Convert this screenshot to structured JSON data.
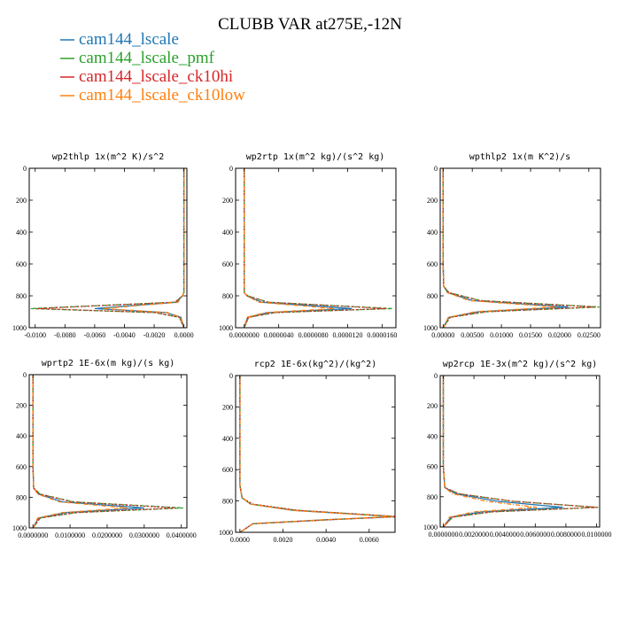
{
  "figure": {
    "title": "CLUBB VAR at275E,-12N"
  },
  "legend": [
    {
      "name": "cam144_lscale",
      "color": "#1f77b4"
    },
    {
      "name": "cam144_lscale_pmf",
      "color": "#2ca02c"
    },
    {
      "name": "cam144_lscale_ck10hi",
      "color": "#d62728"
    },
    {
      "name": "cam144_lscale_ck10low",
      "color": "#ff7f0e"
    }
  ],
  "chart_data": [
    {
      "type": "line",
      "title": "wp2thlp  1x(m^2 K)/s^2",
      "xlim": [
        -0.0104,
        0.0002
      ],
      "ylim": [
        0,
        1000
      ],
      "x_ticks": [
        "-0.0100",
        "-0.0080",
        "-0.0060",
        "-0.0040",
        "-0.0020",
        "0.0000"
      ],
      "x_tick_values": [
        -0.01,
        -0.008,
        -0.006,
        -0.004,
        -0.002,
        0.0
      ],
      "y_ticks": [
        "0",
        "200",
        "400",
        "600",
        "800",
        "1000"
      ],
      "y_tick_values": [
        0,
        200,
        400,
        600,
        800,
        1000
      ],
      "series": [
        {
          "name": "cam144_lscale",
          "x": [
            0,
            0,
            0,
            -0.0001,
            -0.0005,
            -0.006,
            -0.0012,
            -0.0002,
            0
          ],
          "y": [
            0,
            600,
            780,
            800,
            840,
            880,
            905,
            935,
            1000
          ]
        },
        {
          "name": "cam144_lscale_pmf",
          "x": [
            0,
            0,
            0,
            -0.0001,
            -0.0006,
            -0.0103,
            -0.002,
            -0.0003,
            0
          ],
          "y": [
            0,
            600,
            780,
            800,
            840,
            880,
            905,
            935,
            1000
          ]
        },
        {
          "name": "cam144_lscale_ck10hi",
          "x": [
            0,
            0,
            0,
            -0.0001,
            -0.0006,
            -0.0099,
            -0.0019,
            -0.0003,
            0
          ],
          "y": [
            0,
            600,
            780,
            800,
            840,
            880,
            905,
            935,
            1000
          ]
        },
        {
          "name": "cam144_lscale_ck10low",
          "x": [
            0,
            0,
            0,
            -0.0001,
            -0.0004,
            -0.0055,
            -0.0011,
            -0.0002,
            0
          ],
          "y": [
            0,
            600,
            780,
            800,
            840,
            880,
            905,
            935,
            1000
          ]
        }
      ]
    },
    {
      "type": "line",
      "title": "wp2rtp  1x(m^2 kg)/(s^2 kg)",
      "xlim": [
        -1e-06,
        1.76e-05
      ],
      "ylim": [
        0,
        1000
      ],
      "x_ticks": [
        "0.0000000",
        "0.0000040",
        "0.0000080",
        "0.0000120",
        "0.0000160"
      ],
      "x_tick_values": [
        0,
        4e-06,
        8e-06,
        1.2e-05,
        1.6e-05
      ],
      "y_ticks": [
        "0",
        "200",
        "400",
        "600",
        "800",
        "1000"
      ],
      "y_tick_values": [
        0,
        200,
        400,
        600,
        800,
        1000
      ],
      "series": [
        {
          "name": "cam144_lscale",
          "x": [
            0,
            0,
            0,
            3e-07,
            2e-06,
            1.25e-05,
            2.8e-06,
            4e-07,
            0
          ],
          "y": [
            0,
            600,
            780,
            800,
            840,
            880,
            905,
            935,
            1000
          ]
        },
        {
          "name": "cam144_lscale_pmf",
          "x": [
            0,
            0,
            0,
            4e-07,
            2.8e-06,
            1.72e-05,
            3.6e-06,
            5e-07,
            0
          ],
          "y": [
            0,
            600,
            780,
            800,
            840,
            880,
            905,
            935,
            1000
          ]
        },
        {
          "name": "cam144_lscale_ck10hi",
          "x": [
            0,
            0,
            0,
            4e-07,
            2.7e-06,
            1.65e-05,
            3.5e-06,
            5e-07,
            0
          ],
          "y": [
            0,
            600,
            780,
            800,
            840,
            880,
            905,
            935,
            1000
          ]
        },
        {
          "name": "cam144_lscale_ck10low",
          "x": [
            0,
            0,
            0,
            3e-07,
            1.7e-06,
            1.05e-05,
            2.4e-06,
            3e-07,
            0
          ],
          "y": [
            0,
            600,
            780,
            800,
            840,
            880,
            905,
            935,
            1000
          ]
        }
      ]
    },
    {
      "type": "line",
      "title": "wpthlp2  1x(m K^2)/s",
      "xlim": [
        -0.0005,
        0.027
      ],
      "ylim": [
        0,
        1000
      ],
      "x_ticks": [
        "0.00000",
        "0.00500",
        "0.01000",
        "0.01500",
        "0.02000",
        "0.02500"
      ],
      "x_tick_values": [
        0,
        0.005,
        0.01,
        0.015,
        0.02,
        0.025
      ],
      "y_ticks": [
        "0",
        "200",
        "400",
        "600",
        "800",
        "1000"
      ],
      "y_tick_values": [
        0,
        200,
        400,
        600,
        800,
        1000
      ],
      "series": [
        {
          "name": "cam144_lscale",
          "x": [
            0,
            0,
            0.0001,
            0.0008,
            0.005,
            0.0215,
            0.006,
            0.001,
            0
          ],
          "y": [
            0,
            600,
            740,
            780,
            830,
            870,
            900,
            935,
            1000
          ]
        },
        {
          "name": "cam144_lscale_pmf",
          "x": [
            0,
            0,
            0.0001,
            0.001,
            0.0065,
            0.0268,
            0.0075,
            0.0012,
            0
          ],
          "y": [
            0,
            600,
            740,
            780,
            830,
            870,
            900,
            935,
            1000
          ]
        },
        {
          "name": "cam144_lscale_ck10hi",
          "x": [
            0,
            0,
            0.0001,
            0.001,
            0.0062,
            0.026,
            0.0072,
            0.0012,
            0
          ],
          "y": [
            0,
            600,
            740,
            780,
            830,
            870,
            900,
            935,
            1000
          ]
        },
        {
          "name": "cam144_lscale_ck10low",
          "x": [
            0,
            0,
            0.0001,
            0.0007,
            0.0045,
            0.0195,
            0.0055,
            0.0009,
            0
          ],
          "y": [
            0,
            600,
            740,
            780,
            830,
            870,
            900,
            935,
            1000
          ]
        }
      ]
    },
    {
      "type": "line",
      "title": "wprtp2  1E-6x(m kg)/(s kg)",
      "xlim": [
        -1e-06,
        4.15e-05
      ],
      "ylim": [
        0,
        1000
      ],
      "x_ticks": [
        "0.0000000",
        "0.0100000",
        "0.0200000",
        "0.0300000",
        "0.0400000"
      ],
      "x_tick_values": [
        0,
        1e-05,
        2e-05,
        3e-05,
        4e-05
      ],
      "y_ticks": [
        "0",
        "200",
        "400",
        "600",
        "800",
        "1000"
      ],
      "y_tick_values": [
        0,
        200,
        400,
        600,
        800,
        1000
      ],
      "series": [
        {
          "name": "cam144_lscale",
          "x": [
            0,
            0,
            2e-07,
            1.5e-06,
            8e-06,
            3e-05,
            9e-06,
            1.5e-06,
            0
          ],
          "y": [
            0,
            600,
            740,
            780,
            830,
            870,
            900,
            935,
            1000
          ]
        },
        {
          "name": "cam144_lscale_pmf",
          "x": [
            0,
            0,
            2e-07,
            2e-06,
            1.1e-05,
            4.05e-05,
            1.2e-05,
            2e-06,
            0
          ],
          "y": [
            0,
            600,
            740,
            780,
            830,
            870,
            900,
            935,
            1000
          ]
        },
        {
          "name": "cam144_lscale_ck10hi",
          "x": [
            0,
            0,
            2e-07,
            1.9e-06,
            1.05e-05,
            3.85e-05,
            1.15e-05,
            1.9e-06,
            0
          ],
          "y": [
            0,
            600,
            740,
            780,
            830,
            870,
            900,
            935,
            1000
          ]
        },
        {
          "name": "cam144_lscale_ck10low",
          "x": [
            0,
            0,
            2e-07,
            1.3e-06,
            7.2e-06,
            2.55e-05,
            7.9e-06,
            1.3e-06,
            0
          ],
          "y": [
            0,
            600,
            740,
            780,
            830,
            870,
            900,
            935,
            1000
          ]
        }
      ]
    },
    {
      "type": "line",
      "title": "rcp2  1E-6x(kg^2)/(kg^2)",
      "xlim": [
        -0.0002,
        0.0072
      ],
      "ylim": [
        0,
        1000
      ],
      "x_ticks": [
        "0.0000",
        "0.0020",
        "0.0040",
        "0.0060"
      ],
      "x_tick_values": [
        0,
        0.002,
        0.004,
        0.006
      ],
      "y_ticks": [
        "0",
        "200",
        "400",
        "600",
        "800",
        "1000"
      ],
      "y_tick_values": [
        0,
        200,
        400,
        600,
        800,
        1000
      ],
      "series": [
        {
          "name": "cam144_lscale",
          "x": [
            0,
            0,
            0.0001,
            0.0005,
            0.0025,
            0.0072,
            0.004,
            0.0006,
            0
          ],
          "y": [
            0,
            700,
            780,
            820,
            860,
            900,
            920,
            945,
            1000
          ]
        },
        {
          "name": "cam144_lscale_pmf",
          "x": [
            0,
            0,
            0.0001,
            0.0005,
            0.0026,
            0.0073,
            0.0041,
            0.0006,
            0
          ],
          "y": [
            0,
            700,
            780,
            820,
            860,
            900,
            920,
            945,
            1000
          ]
        },
        {
          "name": "cam144_lscale_ck10hi",
          "x": [
            0,
            0,
            0.0001,
            0.0006,
            0.0027,
            0.0074,
            0.0042,
            0.0006,
            0
          ],
          "y": [
            0,
            700,
            780,
            820,
            860,
            900,
            920,
            945,
            1000
          ]
        },
        {
          "name": "cam144_lscale_ck10low",
          "x": [
            0,
            0,
            0.0001,
            0.0005,
            0.0024,
            0.0071,
            0.0039,
            0.0006,
            0
          ],
          "y": [
            0,
            700,
            780,
            820,
            860,
            900,
            920,
            945,
            1000
          ]
        }
      ]
    },
    {
      "type": "line",
      "title": "wp2rcp  1E-3x(m^2 kg)/(s^2 kg)",
      "xlim": [
        -2e-07,
        1.02e-05
      ],
      "ylim": [
        0,
        1000
      ],
      "x_ticks": [
        "0.0000000",
        "0.0020000",
        "0.0040000",
        "0.0060000",
        "0.0080000",
        "0.0100000"
      ],
      "x_tick_values": [
        0,
        2e-06,
        4e-06,
        6e-06,
        8e-06,
        1e-05
      ],
      "y_ticks": [
        "0",
        "200",
        "400",
        "600",
        "800",
        "1000"
      ],
      "y_tick_values": [
        0,
        200,
        400,
        600,
        800,
        1000
      ],
      "series": [
        {
          "name": "cam144_lscale",
          "x": [
            0,
            0,
            1e-07,
            8e-07,
            3.5e-06,
            7.8e-06,
            2.5e-06,
            5e-07,
            0
          ],
          "y": [
            0,
            600,
            740,
            780,
            830,
            870,
            900,
            935,
            1000
          ]
        },
        {
          "name": "cam144_lscale_pmf",
          "x": [
            0,
            0,
            1e-07,
            1e-06,
            4.5e-06,
            1.01e-05,
            3.2e-06,
            6e-07,
            0
          ],
          "y": [
            0,
            600,
            740,
            780,
            830,
            870,
            900,
            935,
            1000
          ]
        },
        {
          "name": "cam144_lscale_ck10hi",
          "x": [
            0,
            0,
            1e-07,
            1e-06,
            4.5e-06,
            1e-05,
            3.1e-06,
            6e-07,
            0
          ],
          "y": [
            0,
            600,
            740,
            780,
            830,
            870,
            900,
            935,
            1000
          ]
        },
        {
          "name": "cam144_lscale_ck10low",
          "x": [
            0,
            0,
            1e-07,
            6e-07,
            2.8e-06,
            6.1e-06,
            2e-06,
            4e-07,
            0
          ],
          "y": [
            0,
            600,
            740,
            780,
            830,
            870,
            900,
            935,
            1000
          ]
        }
      ]
    }
  ]
}
